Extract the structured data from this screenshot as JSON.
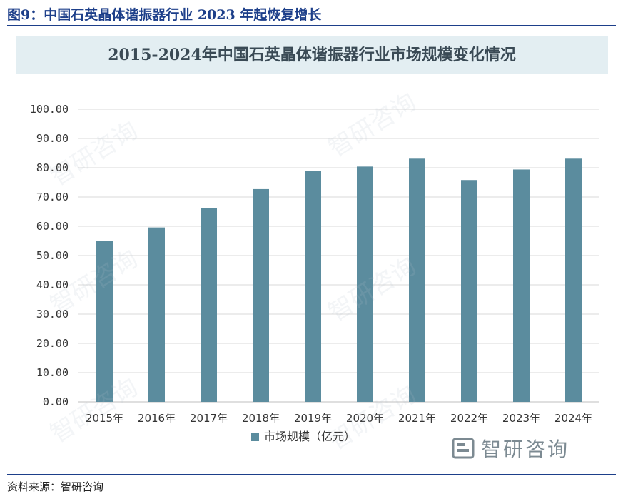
{
  "figure": {
    "title": "图9：中国石英晶体谐振器行业 2023 年起恢复增长",
    "source_label": "资料来源：",
    "source_value": "智研咨询"
  },
  "brand": {
    "name": "智研咨询",
    "icon": "zhiyan-logo-icon"
  },
  "colors": {
    "bar": "#5b8c9e",
    "banner": "#e3eef2",
    "title_blue": "#1d3f8a"
  },
  "chart_data": {
    "type": "bar",
    "title": "2015-2024年中国石英晶体谐振器行业市场规模变化情况",
    "categories": [
      "2015年",
      "2016年",
      "2017年",
      "2018年",
      "2019年",
      "2020年",
      "2021年",
      "2022年",
      "2023年",
      "2024年"
    ],
    "series": [
      {
        "name": "市场规模（亿元）",
        "values": [
          54.9,
          59.6,
          66.3,
          72.7,
          78.8,
          80.4,
          83.1,
          75.8,
          79.4,
          83.1
        ]
      }
    ],
    "ylim": [
      0,
      100
    ],
    "yticks": [
      "0.00",
      "10.00",
      "20.00",
      "30.00",
      "40.00",
      "50.00",
      "60.00",
      "70.00",
      "80.00",
      "90.00",
      "100.00"
    ],
    "grid": true,
    "legend_position": "bottom"
  }
}
